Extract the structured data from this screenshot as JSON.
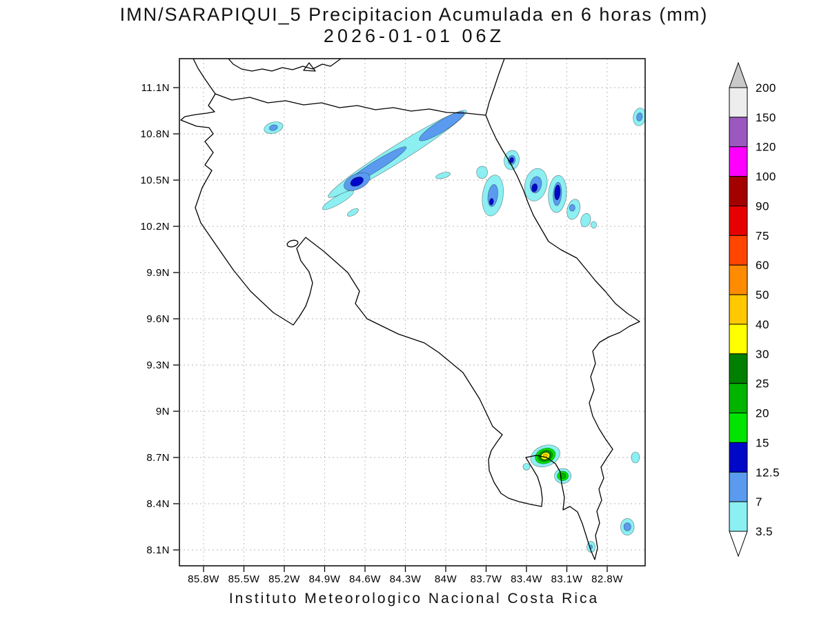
{
  "title": {
    "line1": "IMN/SARAPIQUI_5 Precipitacion Acumulada en 6 horas (mm)",
    "line2": "2026-01-01 06Z"
  },
  "footer": {
    "text": "Instituto Meteorologico Nacional Costa Rica"
  },
  "axes": {
    "lat_ticks": [
      {
        "label": "11.1N",
        "lat": 11.1
      },
      {
        "label": "10.8N",
        "lat": 10.8
      },
      {
        "label": "10.5N",
        "lat": 10.5
      },
      {
        "label": "10.2N",
        "lat": 10.2
      },
      {
        "label": "9.9N",
        "lat": 9.9
      },
      {
        "label": "9.6N",
        "lat": 9.6
      },
      {
        "label": "9.3N",
        "lat": 9.3
      },
      {
        "label": "9N",
        "lat": 9
      },
      {
        "label": "8.7N",
        "lat": 8.7
      },
      {
        "label": "8.4N",
        "lat": 8.4
      },
      {
        "label": "8.1N",
        "lat": 8.1
      }
    ],
    "lon_ticks": [
      {
        "label": "85.8W",
        "lon_w": 85.8
      },
      {
        "label": "85.5W",
        "lon_w": 85.5
      },
      {
        "label": "85.2W",
        "lon_w": 85.2
      },
      {
        "label": "84.9W",
        "lon_w": 84.9
      },
      {
        "label": "84.6W",
        "lon_w": 84.6
      },
      {
        "label": "84.3W",
        "lon_w": 84.3
      },
      {
        "label": "84W",
        "lon_w": 84
      },
      {
        "label": "83.7W",
        "lon_w": 83.7
      },
      {
        "label": "83.4W",
        "lon_w": 83.4
      },
      {
        "label": "83.1W",
        "lon_w": 83.1
      },
      {
        "label": "82.8W",
        "lon_w": 82.8
      }
    ]
  },
  "colorbar": {
    "labels_top_to_bottom": [
      "200",
      "150",
      "120",
      "100",
      "90",
      "75",
      "60",
      "50",
      "40",
      "30",
      "25",
      "20",
      "15",
      "12.5",
      "7",
      "3.5"
    ],
    "arrow_top_color": "#c9c9c9",
    "arrow_bottom_color": "#ffffff"
  },
  "chart_data": {
    "type": "filled_contour_map",
    "variable": "Precipitacion Acumulada en 6 horas (mm)",
    "region": "Costa Rica",
    "valid_time": "2026-01-01 06Z",
    "units": "mm",
    "levels_mm": [
      3.5,
      7,
      12.5,
      15,
      20,
      25,
      30,
      40,
      50,
      60,
      75,
      90,
      100,
      120,
      150,
      200
    ],
    "palette_bottom_to_top": [
      "#8CEFF2",
      "#5A9BF0",
      "#0008C8",
      "#00E400",
      "#00B400",
      "#008000",
      "#FFFF00",
      "#FFC800",
      "#FF8C00",
      "#FF4500",
      "#E60000",
      "#A50000",
      "#FF00FF",
      "#9B59C0",
      "#EDEDED"
    ],
    "features": [
      {
        "lon_w": 85.28,
        "lat": 10.84,
        "rx_deg": 0.072,
        "ry_deg": 0.036,
        "rot_deg": -15,
        "level_mm": 3.5
      },
      {
        "lon_w": 84.36,
        "lat": 10.67,
        "rx_deg": 0.605,
        "ry_deg": 0.054,
        "rot_deg": -32,
        "level_mm": 3.5
      },
      {
        "lon_w": 84.8,
        "lat": 10.37,
        "rx_deg": 0.133,
        "ry_deg": 0.027,
        "rot_deg": -30,
        "level_mm": 3.5
      },
      {
        "lon_w": 84.69,
        "lat": 10.29,
        "rx_deg": 0.046,
        "ry_deg": 0.018,
        "rot_deg": -30,
        "level_mm": 3.5
      },
      {
        "lon_w": 84.02,
        "lat": 10.53,
        "rx_deg": 0.056,
        "ry_deg": 0.018,
        "rot_deg": -15,
        "level_mm": 3.5
      },
      {
        "lon_w": 83.73,
        "lat": 10.55,
        "rx_deg": 0.041,
        "ry_deg": 0.04,
        "rot_deg": 0,
        "level_mm": 3.5
      },
      {
        "lon_w": 83.51,
        "lat": 10.63,
        "rx_deg": 0.056,
        "ry_deg": 0.063,
        "rot_deg": 10,
        "level_mm": 3.5
      },
      {
        "lon_w": 83.65,
        "lat": 10.4,
        "rx_deg": 0.077,
        "ry_deg": 0.134,
        "rot_deg": 8,
        "level_mm": 3.5
      },
      {
        "lon_w": 83.33,
        "lat": 10.47,
        "rx_deg": 0.082,
        "ry_deg": 0.107,
        "rot_deg": 12,
        "level_mm": 3.5
      },
      {
        "lon_w": 83.17,
        "lat": 10.41,
        "rx_deg": 0.067,
        "ry_deg": 0.121,
        "rot_deg": 4,
        "level_mm": 3.5
      },
      {
        "lon_w": 83.05,
        "lat": 10.31,
        "rx_deg": 0.046,
        "ry_deg": 0.067,
        "rot_deg": 15,
        "level_mm": 3.5
      },
      {
        "lon_w": 82.96,
        "lat": 10.24,
        "rx_deg": 0.036,
        "ry_deg": 0.045,
        "rot_deg": 15,
        "level_mm": 3.5
      },
      {
        "lon_w": 82.9,
        "lat": 10.21,
        "rx_deg": 0.021,
        "ry_deg": 0.022,
        "rot_deg": 0,
        "level_mm": 3.5
      },
      {
        "lon_w": 82.56,
        "lat": 10.91,
        "rx_deg": 0.046,
        "ry_deg": 0.058,
        "rot_deg": 10,
        "level_mm": 3.5
      },
      {
        "lon_w": 83.26,
        "lat": 8.71,
        "rx_deg": 0.113,
        "ry_deg": 0.067,
        "rot_deg": -20,
        "level_mm": 3.5
      },
      {
        "lon_w": 83.13,
        "lat": 8.58,
        "rx_deg": 0.062,
        "ry_deg": 0.049,
        "rot_deg": 0,
        "level_mm": 3.5
      },
      {
        "lon_w": 83.4,
        "lat": 8.64,
        "rx_deg": 0.026,
        "ry_deg": 0.022,
        "rot_deg": 0,
        "level_mm": 3.5
      },
      {
        "lon_w": 82.59,
        "lat": 8.7,
        "rx_deg": 0.031,
        "ry_deg": 0.036,
        "rot_deg": 0,
        "level_mm": 3.5
      },
      {
        "lon_w": 82.65,
        "lat": 8.25,
        "rx_deg": 0.051,
        "ry_deg": 0.054,
        "rot_deg": 0,
        "level_mm": 3.5
      },
      {
        "lon_w": 82.92,
        "lat": 8.12,
        "rx_deg": 0.031,
        "ry_deg": 0.036,
        "rot_deg": 0,
        "level_mm": 3.5
      },
      {
        "lon_w": 85.28,
        "lat": 10.84,
        "rx_deg": 0.031,
        "ry_deg": 0.018,
        "rot_deg": -15,
        "level_mm": 7
      },
      {
        "lon_w": 84.52,
        "lat": 10.59,
        "rx_deg": 0.267,
        "ry_deg": 0.031,
        "rot_deg": -32,
        "level_mm": 7
      },
      {
        "lon_w": 84.03,
        "lat": 10.85,
        "rx_deg": 0.195,
        "ry_deg": 0.036,
        "rot_deg": -32,
        "level_mm": 7
      },
      {
        "lon_w": 84.66,
        "lat": 10.49,
        "rx_deg": 0.103,
        "ry_deg": 0.049,
        "rot_deg": -25,
        "level_mm": 7
      },
      {
        "lon_w": 83.51,
        "lat": 10.63,
        "rx_deg": 0.026,
        "ry_deg": 0.031,
        "rot_deg": 10,
        "level_mm": 7
      },
      {
        "lon_w": 83.65,
        "lat": 10.4,
        "rx_deg": 0.036,
        "ry_deg": 0.072,
        "rot_deg": 8,
        "level_mm": 7
      },
      {
        "lon_w": 83.33,
        "lat": 10.47,
        "rx_deg": 0.041,
        "ry_deg": 0.054,
        "rot_deg": 12,
        "level_mm": 7
      },
      {
        "lon_w": 83.17,
        "lat": 10.41,
        "rx_deg": 0.031,
        "ry_deg": 0.076,
        "rot_deg": 4,
        "level_mm": 7
      },
      {
        "lon_w": 83.06,
        "lat": 10.32,
        "rx_deg": 0.021,
        "ry_deg": 0.022,
        "rot_deg": 0,
        "level_mm": 7
      },
      {
        "lon_w": 82.56,
        "lat": 10.91,
        "rx_deg": 0.021,
        "ry_deg": 0.027,
        "rot_deg": 10,
        "level_mm": 7
      },
      {
        "lon_w": 82.65,
        "lat": 8.25,
        "rx_deg": 0.026,
        "ry_deg": 0.027,
        "rot_deg": 0,
        "level_mm": 7
      },
      {
        "lon_w": 82.92,
        "lat": 8.12,
        "rx_deg": 0.01,
        "ry_deg": 0.013,
        "rot_deg": 0,
        "level_mm": 7
      },
      {
        "lon_w": 84.66,
        "lat": 10.49,
        "rx_deg": 0.051,
        "ry_deg": 0.027,
        "rot_deg": -25,
        "level_mm": 12.5
      },
      {
        "lon_w": 83.51,
        "lat": 10.63,
        "rx_deg": 0.015,
        "ry_deg": 0.018,
        "rot_deg": 10,
        "level_mm": 12.5
      },
      {
        "lon_w": 83.66,
        "lat": 10.36,
        "rx_deg": 0.015,
        "ry_deg": 0.022,
        "rot_deg": 8,
        "level_mm": 12.5
      },
      {
        "lon_w": 83.34,
        "lat": 10.45,
        "rx_deg": 0.021,
        "ry_deg": 0.027,
        "rot_deg": 12,
        "level_mm": 12.5
      },
      {
        "lon_w": 83.17,
        "lat": 10.42,
        "rx_deg": 0.021,
        "ry_deg": 0.049,
        "rot_deg": 4,
        "level_mm": 12.5
      },
      {
        "lon_w": 83.26,
        "lat": 8.71,
        "rx_deg": 0.077,
        "ry_deg": 0.049,
        "rot_deg": -20,
        "level_mm": 15
      },
      {
        "lon_w": 83.13,
        "lat": 8.58,
        "rx_deg": 0.041,
        "ry_deg": 0.031,
        "rot_deg": 0,
        "level_mm": 15
      },
      {
        "lon_w": 83.26,
        "lat": 8.71,
        "rx_deg": 0.056,
        "ry_deg": 0.036,
        "rot_deg": -20,
        "level_mm": 20
      },
      {
        "lon_w": 83.13,
        "lat": 8.58,
        "rx_deg": 0.022,
        "ry_deg": 0.018,
        "rot_deg": 0,
        "level_mm": 20
      },
      {
        "lon_w": 83.26,
        "lat": 8.71,
        "rx_deg": 0.044,
        "ry_deg": 0.029,
        "rot_deg": -20,
        "level_mm": 25
      },
      {
        "lon_w": 83.26,
        "lat": 8.71,
        "rx_deg": 0.033,
        "ry_deg": 0.022,
        "rot_deg": -20,
        "level_mm": 30
      },
      {
        "lon_w": 83.26,
        "lat": 8.712,
        "rx_deg": 0.016,
        "ry_deg": 0.011,
        "rot_deg": -20,
        "level_mm": 40
      }
    ]
  }
}
